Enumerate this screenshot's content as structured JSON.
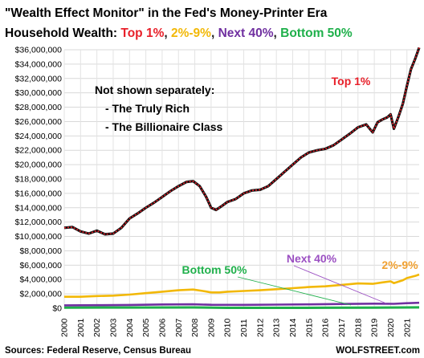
{
  "chart_data": {
    "type": "line",
    "title_line1": "\"Wealth Effect Monitor\" in the Fed's Money-Printer Era",
    "title_line2_prefix": "Household Wealth: ",
    "title_parts": [
      {
        "text": "Top 1%",
        "color": "#e8202a"
      },
      {
        "text": ", ",
        "color": "#222222"
      },
      {
        "text": "2%-9%",
        "color": "#f2b807"
      },
      {
        "text": ", ",
        "color": "#222222"
      },
      {
        "text": "Next 40%",
        "color": "#7030a0"
      },
      {
        "text": ", ",
        "color": "#222222"
      },
      {
        "text": "Bottom 50%",
        "color": "#1fb04b"
      }
    ],
    "ylim": [
      0,
      36000000
    ],
    "xlim": [
      2000,
      2021.75
    ],
    "y_ticks": [
      "$0",
      "$2,000,000",
      "$4,000,000",
      "$6,000,000",
      "$8,000,000",
      "$10,000,000",
      "$12,000,000",
      "$14,000,000",
      "$16,000,000",
      "$18,000,000",
      "$20,000,000",
      "$22,000,000",
      "$24,000,000",
      "$26,000,000",
      "$28,000,000",
      "$30,000,000",
      "$32,000,000",
      "$34,000,000",
      "$36,000,000"
    ],
    "x_ticks": [
      "2000",
      "2001",
      "2002",
      "2003",
      "2004",
      "2005",
      "2006",
      "2007",
      "2008",
      "2009",
      "2010",
      "2011",
      "2012",
      "2013",
      "2014",
      "2015",
      "2016",
      "2017",
      "2018",
      "2019",
      "2020",
      "2021"
    ],
    "grid": true,
    "series": [
      {
        "name": "Top 1%",
        "color": "#e8202a",
        "points": [
          [
            2000,
            11200000
          ],
          [
            2000.5,
            11300000
          ],
          [
            2001,
            10700000
          ],
          [
            2001.5,
            10400000
          ],
          [
            2002,
            10800000
          ],
          [
            2002.5,
            10300000
          ],
          [
            2003,
            10400000
          ],
          [
            2003.5,
            11200000
          ],
          [
            2004,
            12500000
          ],
          [
            2004.5,
            13200000
          ],
          [
            2005,
            14000000
          ],
          [
            2005.5,
            14700000
          ],
          [
            2006,
            15500000
          ],
          [
            2006.5,
            16300000
          ],
          [
            2007,
            17000000
          ],
          [
            2007.5,
            17600000
          ],
          [
            2007.9,
            17700000
          ],
          [
            2008.3,
            17000000
          ],
          [
            2008.7,
            15500000
          ],
          [
            2009,
            14000000
          ],
          [
            2009.3,
            13700000
          ],
          [
            2009.7,
            14300000
          ],
          [
            2010,
            14800000
          ],
          [
            2010.5,
            15200000
          ],
          [
            2011,
            16000000
          ],
          [
            2011.5,
            16400000
          ],
          [
            2012,
            16500000
          ],
          [
            2012.5,
            17000000
          ],
          [
            2013,
            18000000
          ],
          [
            2013.5,
            19000000
          ],
          [
            2014,
            20000000
          ],
          [
            2014.5,
            21000000
          ],
          [
            2015,
            21700000
          ],
          [
            2015.5,
            22000000
          ],
          [
            2016,
            22200000
          ],
          [
            2016.5,
            22700000
          ],
          [
            2017,
            23500000
          ],
          [
            2017.5,
            24300000
          ],
          [
            2018,
            25200000
          ],
          [
            2018.5,
            25600000
          ],
          [
            2018.9,
            24500000
          ],
          [
            2019.2,
            25900000
          ],
          [
            2019.5,
            26300000
          ],
          [
            2019.8,
            26600000
          ],
          [
            2020,
            27000000
          ],
          [
            2020.2,
            25000000
          ],
          [
            2020.5,
            26800000
          ],
          [
            2020.75,
            28500000
          ],
          [
            2021,
            31000000
          ],
          [
            2021.25,
            33300000
          ],
          [
            2021.5,
            34700000
          ],
          [
            2021.75,
            36300000
          ]
        ]
      },
      {
        "name": "2%-9%",
        "color": "#f2b807",
        "points": [
          [
            2000,
            1600000
          ],
          [
            2001,
            1600000
          ],
          [
            2002,
            1700000
          ],
          [
            2003,
            1750000
          ],
          [
            2004,
            1900000
          ],
          [
            2005,
            2100000
          ],
          [
            2006,
            2300000
          ],
          [
            2007,
            2500000
          ],
          [
            2007.9,
            2600000
          ],
          [
            2008.5,
            2400000
          ],
          [
            2009,
            2200000
          ],
          [
            2009.5,
            2200000
          ],
          [
            2010,
            2300000
          ],
          [
            2011,
            2400000
          ],
          [
            2012,
            2500000
          ],
          [
            2013,
            2650000
          ],
          [
            2014,
            2800000
          ],
          [
            2015,
            2950000
          ],
          [
            2016,
            3050000
          ],
          [
            2017,
            3250000
          ],
          [
            2018,
            3450000
          ],
          [
            2018.9,
            3400000
          ],
          [
            2019.5,
            3600000
          ],
          [
            2020,
            3750000
          ],
          [
            2020.2,
            3500000
          ],
          [
            2020.75,
            3900000
          ],
          [
            2021,
            4200000
          ],
          [
            2021.5,
            4500000
          ],
          [
            2021.75,
            4700000
          ]
        ]
      },
      {
        "name": "Next 40%",
        "color": "#7030a0",
        "points": [
          [
            2000,
            400000
          ],
          [
            2002,
            420000
          ],
          [
            2004,
            460000
          ],
          [
            2006,
            520000
          ],
          [
            2007.9,
            550000
          ],
          [
            2009,
            480000
          ],
          [
            2011,
            470000
          ],
          [
            2013,
            500000
          ],
          [
            2015,
            540000
          ],
          [
            2017,
            590000
          ],
          [
            2019,
            640000
          ],
          [
            2020.2,
            620000
          ],
          [
            2021,
            700000
          ],
          [
            2021.75,
            760000
          ]
        ]
      },
      {
        "name": "Bottom 50%",
        "color": "#1fb04b",
        "points": [
          [
            2000,
            80000
          ],
          [
            2004,
            100000
          ],
          [
            2007.9,
            110000
          ],
          [
            2010,
            60000
          ],
          [
            2013,
            60000
          ],
          [
            2016,
            70000
          ],
          [
            2019,
            90000
          ],
          [
            2021.75,
            120000
          ]
        ]
      }
    ],
    "annotations": [
      {
        "name": "note-line-1",
        "text": "Not shown separately:"
      },
      {
        "name": "note-line-2",
        "text": "- The Truly Rich"
      },
      {
        "name": "note-line-3",
        "text": "- The Billionaire Class"
      }
    ],
    "series_labels": {
      "top1": "Top 1%",
      "p2_9": "2%-9%",
      "next40": "Next 40%",
      "bottom50": "Bottom 50%"
    },
    "source": "Sources: Federal Reserve, Census Bureau",
    "credit": "WOLFSTREET.com"
  }
}
